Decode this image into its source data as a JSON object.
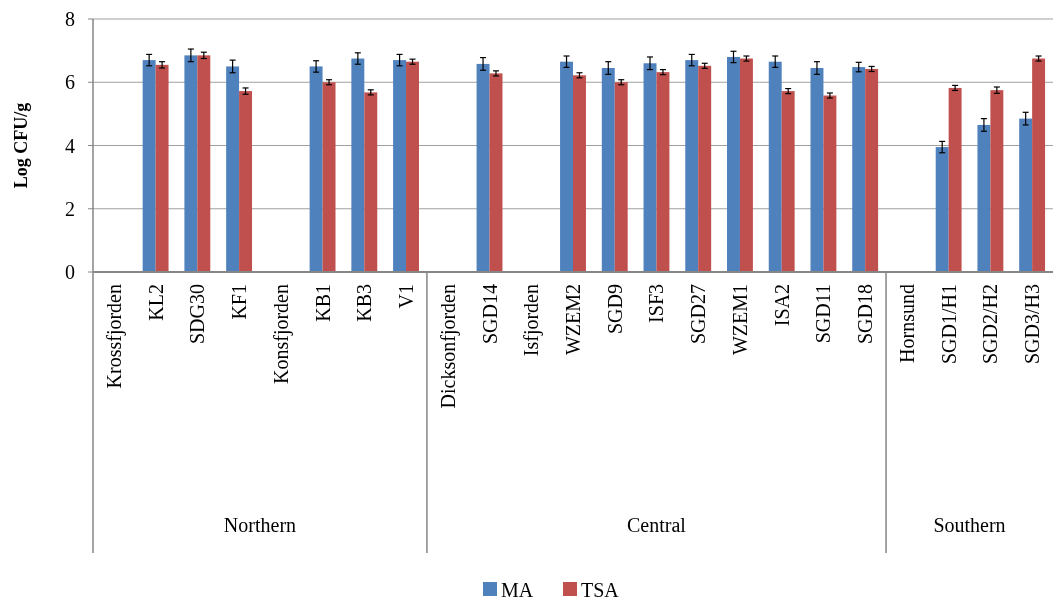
{
  "chart_data": {
    "type": "bar",
    "ylabel": "Log CFU/g",
    "categories": [
      "Krossfjorden",
      "KL2",
      "SDG30",
      "KF1",
      "Konsfjorden",
      "KB1",
      "KB3",
      "V1",
      "Dicksonfjorden",
      "SGD14",
      "Isfjorden",
      "WZEM2",
      "SGD9",
      "ISF3",
      "SGD27",
      "WZEM1",
      "ISA2",
      "SGD11",
      "SGD18",
      "Hornsund",
      "SGD1/H1",
      "SGD2/H2",
      "SGD3/H3"
    ],
    "series": [
      {
        "name": "MA",
        "color": "#4f81bd",
        "values": [
          null,
          6.7,
          6.85,
          6.5,
          null,
          6.5,
          6.75,
          6.7,
          null,
          6.58,
          null,
          6.65,
          6.45,
          6.6,
          6.7,
          6.8,
          6.65,
          6.45,
          6.48,
          null,
          3.95,
          4.65,
          4.85
        ],
        "errors": [
          null,
          0.18,
          0.2,
          0.2,
          null,
          0.18,
          0.18,
          0.18,
          null,
          0.2,
          null,
          0.18,
          0.2,
          0.2,
          0.18,
          0.18,
          0.18,
          0.2,
          0.15,
          null,
          0.18,
          0.2,
          0.2
        ]
      },
      {
        "name": "TSA",
        "color": "#c0504d",
        "values": [
          null,
          6.55,
          6.85,
          5.72,
          null,
          6.0,
          5.68,
          6.65,
          null,
          6.28,
          null,
          6.22,
          6.0,
          6.32,
          6.52,
          6.75,
          5.72,
          5.58,
          6.42,
          null,
          5.82,
          5.75,
          6.75
        ],
        "errors": [
          null,
          0.1,
          0.1,
          0.1,
          null,
          0.08,
          0.08,
          0.08,
          null,
          0.08,
          null,
          0.08,
          0.08,
          0.08,
          0.08,
          0.08,
          0.08,
          0.08,
          0.08,
          null,
          0.08,
          0.1,
          0.08
        ]
      }
    ],
    "ylim": [
      0,
      8
    ],
    "yticks": [
      0,
      2,
      4,
      6,
      8
    ],
    "grid": "y",
    "legend": "bottom",
    "annotations": [
      "Northern",
      "Central",
      "Southern"
    ]
  }
}
